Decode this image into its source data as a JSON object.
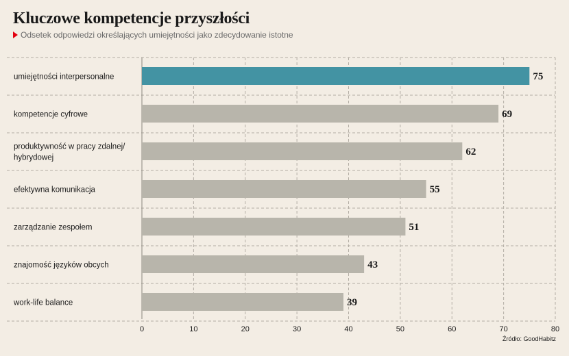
{
  "header": {
    "title": "Kluczowe kompetencje przyszłości",
    "subtitle": "Odsetek odpowiedzi określających umiejętności jako zdecydowanie istotne"
  },
  "footer": {
    "source": "Źródło: GoodHabitz"
  },
  "colors": {
    "highlight": "#4393a3",
    "bar": "#b8b5ab",
    "grid": "#b3ada4",
    "marker": "#e3000f"
  },
  "chart_data": {
    "type": "bar",
    "orientation": "horizontal",
    "title": "",
    "xlabel": "",
    "ylabel": "",
    "xlim": [
      0,
      80
    ],
    "xticks": [
      0,
      10,
      20,
      30,
      40,
      50,
      60,
      70,
      80
    ],
    "grid": true,
    "categories": [
      [
        "umiejętności interpersonalne"
      ],
      [
        "kompetencje cyfrowe"
      ],
      [
        "produktywność w pracy zdalnej/",
        "hybrydowej"
      ],
      [
        "efektywna komunikacja"
      ],
      [
        "zarządzanie zespołem"
      ],
      [
        "znajomość języków obcych"
      ],
      [
        "work-life balance"
      ]
    ],
    "values": [
      75,
      69,
      62,
      55,
      51,
      43,
      39
    ],
    "highlight_index": 0
  }
}
